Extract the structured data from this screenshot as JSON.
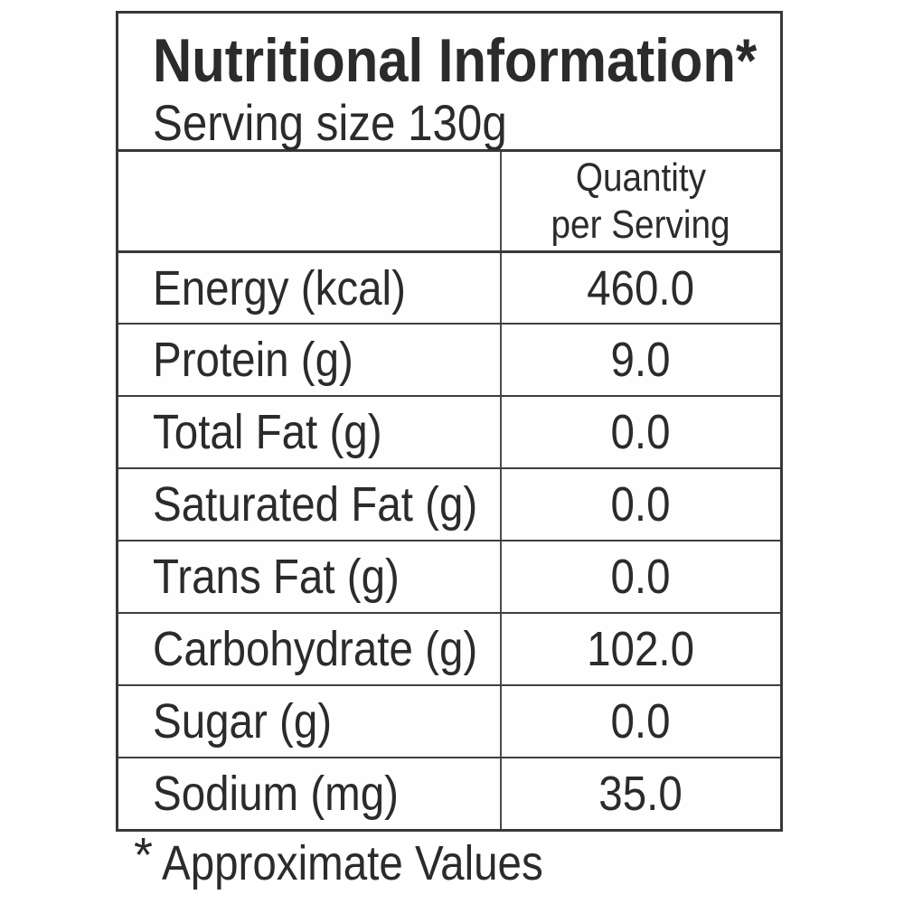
{
  "table": {
    "title": "Nutritional Information*",
    "serving_size": "Serving size 130g",
    "column_header": {
      "line1": "Quantity",
      "line2": "per Serving"
    },
    "rows": [
      {
        "label": "Energy (kcal)",
        "value": "460.0"
      },
      {
        "label": "Protein (g)",
        "value": "9.0"
      },
      {
        "label": "Total Fat (g)",
        "value": "0.0"
      },
      {
        "label": "Saturated Fat (g)",
        "value": "0.0"
      },
      {
        "label": "Trans Fat (g)",
        "value": "0.0"
      },
      {
        "label": "Carbohydrate (g)",
        "value": "102.0"
      },
      {
        "label": "Sugar (g)",
        "value": "0.0"
      },
      {
        "label": "Sodium (mg)",
        "value": "35.0"
      }
    ],
    "footnote_marker": "*",
    "footnote_text": "Approximate Values"
  },
  "colors": {
    "text": "#2b2b2b",
    "border": "#383838",
    "background": "#ffffff"
  }
}
